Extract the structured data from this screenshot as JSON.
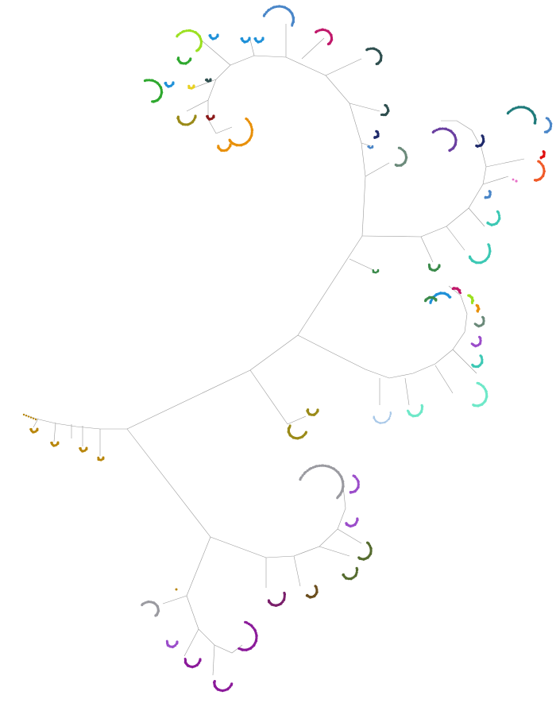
{
  "diagram": {
    "type": "unrooted-phylogenetic-tree",
    "background": "#ffffff",
    "edge_color": "#9a9a9a",
    "clade_colors": {
      "olive_gold": "#b8860b",
      "gold_green": "#9a8a18",
      "silver": "#9a9aa0",
      "violet": "#9b4dca",
      "olive_drab": "#556b2f",
      "brown": "#6b4e1e",
      "plum": "#7a1f6b",
      "magenta": "#8b1a9a",
      "sky": "#1e90d8",
      "turquoise": "#3cc8b4",
      "aquamarine": "#6ee8c8",
      "pale_blue": "#a8c8e8",
      "forest": "#2e8b3e",
      "steel_blue": "#4a86c8",
      "navy": "#1f2a6b",
      "slate": "#2f4f4f",
      "teal": "#1e7a7a",
      "indigo": "#6a3fa0",
      "orange": "#e8900a",
      "red": "#e01010",
      "orange_red": "#f05a28",
      "crimson": "#c0186a",
      "lime": "#9be020",
      "green": "#2ea82e",
      "dark_red": "#8b1a1a",
      "yellow": "#e8d020",
      "grey_green": "#6b8a7a",
      "pink": "#e870c8",
      "sea_green": "#3a8a4a"
    }
  }
}
